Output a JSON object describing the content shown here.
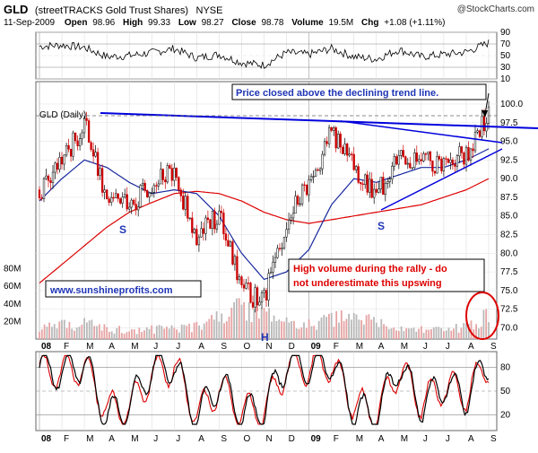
{
  "header": {
    "ticker": "GLD",
    "name": "(streetTRACKS Gold Trust Shares)",
    "exchange": "NYSE",
    "credit": "@StockCharts.com",
    "date": "11-Sep-2009",
    "open_label": "Open",
    "open_value": "98.96",
    "high_label": "High",
    "high_value": "99.33",
    "low_label": "Low",
    "low_value": "98.27",
    "close_label": "Close",
    "close_value": "98.78",
    "volume_label": "Volume",
    "volume_value": "19.5M",
    "chg_label": "Chg",
    "chg_value": "+1.08 (+1.11%)"
  },
  "annotations": {
    "trend_note": "Price closed above the declining trend line.",
    "volume_note_line1": "High volume during the rally - do",
    "volume_note_line2": "not underestimate this upswing",
    "website": "www.sunshineprofits.com",
    "s_left": "S",
    "s_right": "S",
    "h_label": "H"
  },
  "colors": {
    "trend_line": "#0000dd",
    "ma_short": "#1a2a9e",
    "ma_long": "#dd0000",
    "up_candle": "#000000",
    "down_candle": "#cc0000",
    "volume_up": "#b8b8b8",
    "volume_down": "#e7a3a3",
    "note_box_border": "#000000",
    "trend_note_text": "#1f35b5",
    "volume_note_text": "#dd0000",
    "circle": "#dd0000"
  },
  "chart_data": [
    {
      "type": "line",
      "panel": "rsi",
      "ylim": [
        10,
        90
      ],
      "yticks": [
        "90",
        "70",
        "50",
        "30",
        "10"
      ],
      "x": [
        "Jan 2008",
        "Feb 2008",
        "Mar 2008",
        "Apr 2008",
        "May 2008",
        "Jun 2008",
        "Jul 2008",
        "Aug 2008",
        "Sep 2008",
        "Oct 2008",
        "Nov 2008",
        "Dec 2008",
        "Jan 2009",
        "Feb 2009",
        "Mar 2009",
        "Apr 2009",
        "May 2009",
        "Jun 2009",
        "Jul 2009",
        "Aug 2009",
        "Sep 2009"
      ],
      "series": [
        {
          "values": [
            66,
            68,
            64,
            48,
            50,
            55,
            62,
            46,
            52,
            38,
            34,
            55,
            52,
            62,
            48,
            44,
            60,
            48,
            52,
            56,
            72
          ]
        }
      ]
    },
    {
      "type": "candlestick",
      "panel": "price",
      "title": "GLD (Daily)",
      "ylim": [
        68.5,
        103
      ],
      "yticks": [
        "100.0",
        "97.5",
        "95.0",
        "92.5",
        "90.0",
        "87.5",
        "85.0",
        "82.5",
        "80.0",
        "77.5",
        "75.0",
        "72.5",
        "70.0"
      ],
      "x": [
        "Jan 2008",
        "Feb 2008",
        "Mar 2008",
        "Apr 2008",
        "May 2008",
        "Jun 2008",
        "Jul 2008",
        "Aug 2008",
        "Sep 2008",
        "Oct 2008",
        "Nov 2008",
        "Dec 2008",
        "Jan 2009",
        "Feb 2009",
        "Mar 2009",
        "Apr 2009",
        "May 2009",
        "Jun 2009",
        "Jul 2009",
        "Aug 2009",
        "Sep 2009"
      ],
      "close": [
        88.5,
        92.0,
        97.5,
        87.5,
        86.5,
        89.0,
        91.0,
        82.0,
        85.0,
        75.0,
        73.5,
        84.5,
        89.0,
        96.0,
        91.5,
        87.5,
        94.0,
        92.0,
        92.5,
        93.5,
        98.8
      ],
      "ma_short": [
        87.0,
        90.0,
        92.5,
        91.5,
        89.5,
        88.0,
        88.5,
        88.0,
        85.0,
        80.0,
        76.5,
        77.5,
        80.5,
        86.5,
        90.0,
        89.5,
        90.5,
        91.5,
        91.5,
        92.5,
        94.0
      ],
      "ma_long": [
        76.0,
        78.5,
        81.0,
        83.5,
        85.5,
        86.8,
        88.0,
        88.3,
        88.0,
        87.0,
        85.5,
        84.5,
        84.0,
        84.5,
        85.0,
        85.5,
        86.0,
        86.5,
        87.5,
        88.5,
        90.0
      ],
      "volume_axis": {
        "ylim": [
          0,
          100
        ],
        "yticks": [
          "80M",
          "60M",
          "40M",
          "20M"
        ]
      },
      "volume": [
        14,
        15,
        18,
        12,
        10,
        11,
        13,
        14,
        24,
        36,
        28,
        18,
        16,
        22,
        24,
        18,
        12,
        11,
        10,
        14,
        26
      ]
    },
    {
      "type": "line",
      "panel": "stochastic",
      "ylim": [
        0,
        100
      ],
      "yticks": [
        "80",
        "50",
        "20"
      ],
      "x": [
        "Jan 2008",
        "Feb 2008",
        "Mar 2008",
        "Apr 2008",
        "May 2008",
        "Jun 2008",
        "Jul 2008",
        "Aug 2008",
        "Sep 2008",
        "Oct 2008",
        "Nov 2008",
        "Dec 2008",
        "Jan 2009",
        "Feb 2009",
        "Mar 2009",
        "Apr 2009",
        "May 2009",
        "Jun 2009",
        "Jul 2009",
        "Aug 2009",
        "Sep 2009"
      ],
      "series": [
        {
          "values": [
            80,
            72,
            86,
            18,
            32,
            78,
            84,
            14,
            62,
            22,
            28,
            86,
            78,
            88,
            26,
            18,
            84,
            30,
            60,
            42,
            88
          ]
        },
        {
          "values": [
            74,
            76,
            80,
            28,
            28,
            70,
            82,
            20,
            55,
            26,
            26,
            80,
            80,
            84,
            34,
            22,
            78,
            36,
            56,
            46,
            84
          ]
        }
      ]
    }
  ],
  "x_axis": {
    "labels": [
      "08",
      "F",
      "M",
      "A",
      "M",
      "J",
      "J",
      "A",
      "S",
      "O",
      "N",
      "D",
      "09",
      "F",
      "M",
      "A",
      "M",
      "J",
      "J",
      "A",
      "S"
    ]
  }
}
